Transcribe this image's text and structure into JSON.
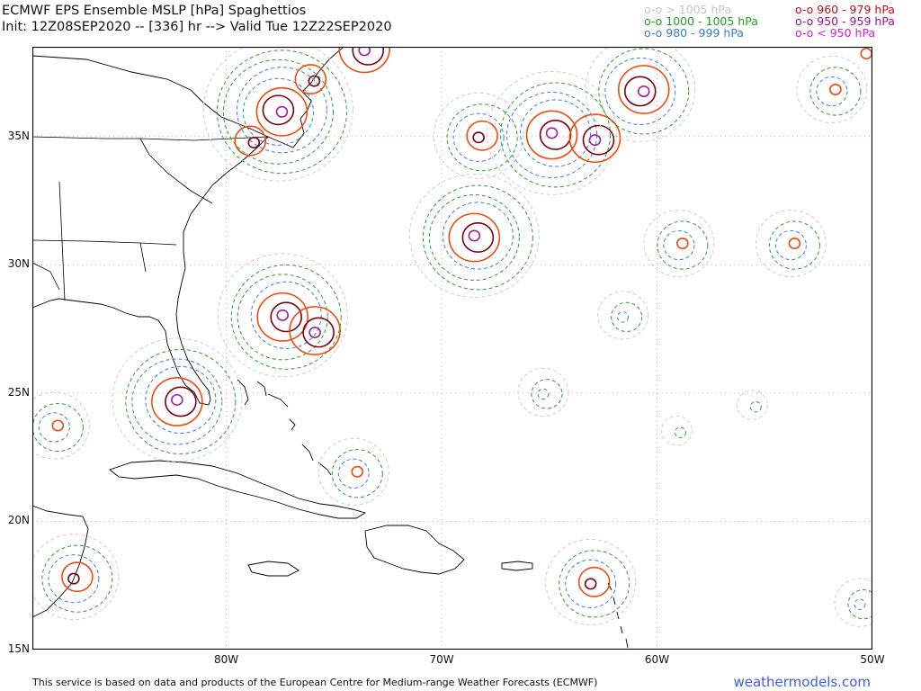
{
  "title_line1": "ECMWF EPS Ensemble MSLP [hPa] Spaghettios",
  "title_line2": "Init: 12Z08SEP2020 -- [336] hr --> Valid Tue 12Z22SEP2020",
  "legend": [
    {
      "label": "o-o > 1005 hPa",
      "color": "#c8c8c8"
    },
    {
      "label": "o-o 1000 - 1005 hPa",
      "color": "#22a022"
    },
    {
      "label": "o-o 980 - 999 hPa",
      "color": "#3a7fd8"
    },
    {
      "label": "o-o 960 - 979 hPa",
      "color": "#c01010"
    },
    {
      "label": "o-o 950 - 959 hPa",
      "color": "#a010a0"
    },
    {
      "label": "o-o < 950 hPa",
      "color": "#cc22cc"
    }
  ],
  "map": {
    "lon_range": [
      -89,
      -50
    ],
    "lat_range": [
      15,
      38.5
    ],
    "lat_ticks": [
      "15N",
      "20N",
      "25N",
      "30N",
      "35N"
    ],
    "lon_ticks": [
      "80W",
      "70W",
      "60W",
      "50W"
    ],
    "colors": {
      "gray": "#cfcfcf",
      "green": "#2aa02a",
      "blue": "#3a7fd8",
      "orange": "#f04a10",
      "darkred": "#7a0010",
      "purple": "#a020a0"
    },
    "lows": [
      {
        "lon": -77.5,
        "lat": 36.0,
        "rings": [
          "gray",
          "green",
          "green",
          "blue",
          "blue",
          "orange",
          "darkred",
          "purple"
        ]
      },
      {
        "lon": -78.8,
        "lat": 34.8,
        "rings": [
          "orange",
          "darkred"
        ]
      },
      {
        "lon": -76.0,
        "lat": 37.2,
        "rings": [
          "orange",
          "darkred"
        ]
      },
      {
        "lon": -73.5,
        "lat": 38.4,
        "rings": [
          "orange",
          "darkred",
          "purple"
        ]
      },
      {
        "lon": -68.2,
        "lat": 35.0,
        "rings": [
          "gray",
          "green",
          "blue",
          "orange",
          "darkred"
        ]
      },
      {
        "lon": -64.8,
        "lat": 35.1,
        "rings": [
          "gray",
          "green",
          "blue",
          "blue",
          "orange",
          "darkred",
          "purple"
        ]
      },
      {
        "lon": -62.8,
        "lat": 34.9,
        "rings": [
          "orange",
          "darkred",
          "purple"
        ]
      },
      {
        "lon": -60.7,
        "lat": 36.8,
        "rings": [
          "gray",
          "green",
          "blue",
          "orange",
          "darkred",
          "purple"
        ]
      },
      {
        "lon": -68.4,
        "lat": 31.1,
        "rings": [
          "gray",
          "green",
          "green",
          "blue",
          "orange",
          "darkred",
          "purple"
        ]
      },
      {
        "lon": -58.9,
        "lat": 30.8,
        "rings": [
          "gray",
          "green",
          "blue",
          "orange"
        ]
      },
      {
        "lon": -53.7,
        "lat": 30.8,
        "rings": [
          "gray",
          "green",
          "blue",
          "orange"
        ]
      },
      {
        "lon": -51.8,
        "lat": 36.8,
        "rings": [
          "gray",
          "green",
          "blue",
          "orange"
        ]
      },
      {
        "lon": -50.2,
        "lat": 38.2,
        "rings": [
          "orange"
        ]
      },
      {
        "lon": -77.3,
        "lat": 28.0,
        "rings": [
          "gray",
          "green",
          "green",
          "blue",
          "orange",
          "darkred",
          "purple"
        ]
      },
      {
        "lon": -75.8,
        "lat": 27.4,
        "rings": [
          "orange",
          "darkred",
          "purple"
        ]
      },
      {
        "lon": -82.2,
        "lat": 24.7,
        "rings": [
          "gray",
          "green",
          "blue",
          "blue",
          "orange",
          "darkred",
          "purple"
        ]
      },
      {
        "lon": -87.9,
        "lat": 23.7,
        "rings": [
          "gray",
          "green",
          "blue",
          "orange"
        ]
      },
      {
        "lon": -74.0,
        "lat": 21.9,
        "rings": [
          "gray",
          "green",
          "blue",
          "orange"
        ]
      },
      {
        "lon": -61.5,
        "lat": 28.0,
        "rings": [
          "gray",
          "green",
          "blue"
        ]
      },
      {
        "lon": -65.2,
        "lat": 25.0,
        "rings": [
          "gray",
          "green",
          "blue"
        ]
      },
      {
        "lon": -55.5,
        "lat": 24.5,
        "rings": [
          "gray",
          "green"
        ]
      },
      {
        "lon": -59.0,
        "lat": 23.5,
        "rings": [
          "gray",
          "green"
        ]
      },
      {
        "lon": -87.0,
        "lat": 17.8,
        "rings": [
          "gray",
          "green",
          "blue",
          "orange",
          "darkred"
        ]
      },
      {
        "lon": -63.0,
        "lat": 17.6,
        "rings": [
          "gray",
          "green",
          "blue",
          "orange",
          "darkred"
        ]
      },
      {
        "lon": -50.5,
        "lat": 16.8,
        "rings": [
          "gray",
          "green",
          "blue"
        ]
      }
    ]
  },
  "footer": "This service is based on data and products of the European Centre for Medium-range Weather Forecasts (ECMWF)",
  "brand": "weathermodels.com"
}
